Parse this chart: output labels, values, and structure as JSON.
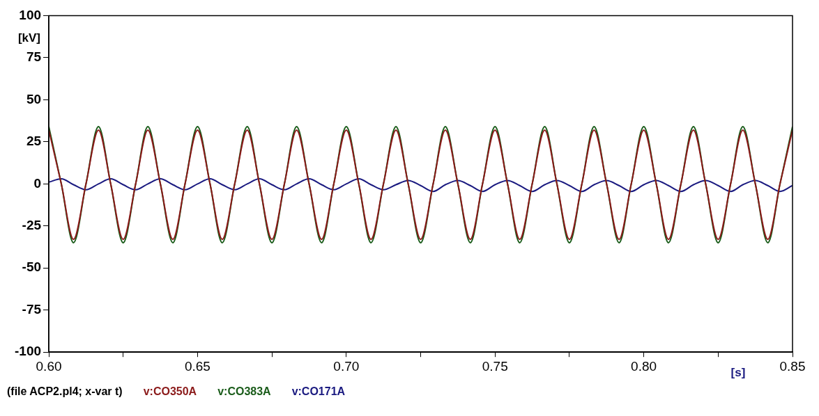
{
  "chart_data": {
    "type": "line",
    "ylabel": "[kV]",
    "xlabel": "[s]",
    "annotations": [
      "(file ACP2.pl4; x-var t)"
    ],
    "legend": "bottom",
    "grid": false,
    "xlim": [
      0.6,
      0.85
    ],
    "ylim": [
      -100,
      100
    ],
    "xticks": [
      {
        "value": 0.6,
        "label": "0.60"
      },
      {
        "value": 0.625,
        "label": null
      },
      {
        "value": 0.65,
        "label": "0.65"
      },
      {
        "value": 0.675,
        "label": null
      },
      {
        "value": 0.7,
        "label": "0.70"
      },
      {
        "value": 0.725,
        "label": null
      },
      {
        "value": 0.75,
        "label": "0.75"
      },
      {
        "value": 0.775,
        "label": null
      },
      {
        "value": 0.8,
        "label": "0.80"
      },
      {
        "value": 0.825,
        "label": null
      },
      {
        "value": 0.85,
        "label": "0.85"
      }
    ],
    "yticks": [
      -100,
      -75,
      -50,
      -25,
      0,
      25,
      50,
      75,
      100
    ],
    "x": [
      0.6,
      0.6042,
      0.6083,
      0.6125,
      0.6167,
      0.6208,
      0.625,
      0.6292,
      0.6333,
      0.6375,
      0.6417,
      0.6458,
      0.65,
      0.6542,
      0.6583,
      0.6625,
      0.6667,
      0.6708,
      0.675,
      0.6792,
      0.6833,
      0.6875,
      0.6917,
      0.6958,
      0.7,
      0.7042,
      0.7083,
      0.7125,
      0.7167,
      0.7208,
      0.725,
      0.7292,
      0.7333,
      0.7375,
      0.7417,
      0.7458,
      0.75,
      0.7542,
      0.7583,
      0.7625,
      0.7667,
      0.7708,
      0.775,
      0.7792,
      0.7833,
      0.7875,
      0.7917,
      0.7958,
      0.8,
      0.8042,
      0.8083,
      0.8125,
      0.8167,
      0.8208,
      0.825,
      0.8292,
      0.8333,
      0.8375,
      0.8417,
      0.8458,
      0.85
    ],
    "series": [
      {
        "name": "v:CO350A",
        "color": "#8b1a1a",
        "values": [
          32,
          0,
          -33,
          0,
          32,
          0,
          -33,
          0,
          32,
          0,
          -33,
          0,
          32,
          0,
          -33,
          0,
          32,
          0,
          -33,
          0,
          32,
          0,
          -33,
          0,
          32,
          0,
          -33,
          0,
          32,
          0,
          -33,
          0,
          32,
          0,
          -33,
          0,
          32,
          0,
          -33,
          0,
          32,
          0,
          -33,
          0,
          32,
          0,
          -33,
          0,
          32,
          0,
          -33,
          0,
          32,
          0,
          -33,
          0,
          32,
          0,
          -33,
          0,
          32
        ]
      },
      {
        "name": "v:CO383A",
        "color": "#1a5c1a",
        "values": [
          34,
          0,
          -35,
          0,
          34,
          0,
          -35,
          0,
          34,
          0,
          -35,
          0,
          34,
          0,
          -35,
          0,
          34,
          0,
          -35,
          0,
          34,
          0,
          -35,
          0,
          34,
          0,
          -35,
          0,
          34,
          0,
          -35,
          0,
          34,
          0,
          -35,
          0,
          34,
          0,
          -35,
          0,
          34,
          0,
          -35,
          0,
          34,
          0,
          -35,
          0,
          34,
          0,
          -35,
          0,
          34,
          0,
          -35,
          0,
          34,
          0,
          -35,
          0,
          34
        ]
      },
      {
        "name": "v:CO171A",
        "color": "#1a1a80",
        "values": [
          1,
          3,
          -0.5,
          -3.5,
          0,
          3,
          -0.5,
          -3.5,
          0,
          3,
          -0.5,
          -3.5,
          0,
          3,
          -0.5,
          -3.5,
          0,
          3,
          -0.5,
          -3.5,
          0,
          3,
          -0.5,
          -3.5,
          0,
          3,
          -0.5,
          -3.5,
          -0.5,
          2,
          -1,
          -4.5,
          -0.5,
          2,
          -1,
          -4.5,
          -0.5,
          2,
          -1,
          -4.5,
          -0.5,
          2,
          -1,
          -4.5,
          -0.5,
          2,
          -1,
          -4.5,
          -0.5,
          2,
          -1,
          -4.5,
          -0.5,
          2,
          -1,
          -4.5,
          -0.5,
          2,
          -1,
          -4.5,
          -1
        ]
      }
    ]
  }
}
